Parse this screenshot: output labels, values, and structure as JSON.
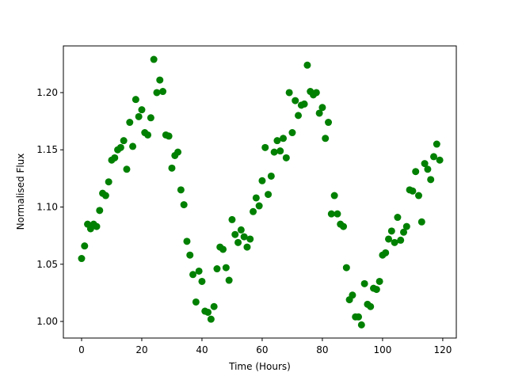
{
  "chart_data": {
    "type": "scatter",
    "xlabel": "Time (Hours)",
    "ylabel": "Normalised Flux",
    "color": "#008000",
    "x": [
      0,
      1,
      2,
      3,
      4,
      5,
      6,
      7,
      8,
      9,
      10,
      11,
      12,
      13,
      14,
      15,
      16,
      17,
      18,
      19,
      20,
      21,
      22,
      23,
      24,
      25,
      26,
      27,
      28,
      29,
      30,
      31,
      32,
      33,
      34,
      35,
      36,
      37,
      38,
      39,
      40,
      41,
      42,
      43,
      44,
      45,
      46,
      47,
      48,
      49,
      50,
      51,
      52,
      53,
      54,
      55,
      56,
      57,
      58,
      59,
      60,
      61,
      62,
      63,
      64,
      65,
      66,
      67,
      68,
      69,
      70,
      71,
      72,
      73,
      74,
      75,
      76,
      77,
      78,
      79,
      80,
      81,
      82,
      83,
      84,
      85,
      86,
      87,
      88,
      89,
      90,
      91,
      92,
      93,
      94,
      95,
      96,
      97,
      98,
      99,
      100,
      101,
      102,
      103,
      104,
      105,
      106,
      107,
      108,
      109,
      110,
      111,
      112,
      113,
      114,
      115,
      116,
      117,
      118,
      119
    ],
    "values": [
      1.055,
      1.066,
      1.085,
      1.081,
      1.085,
      1.083,
      1.097,
      1.112,
      1.11,
      1.122,
      1.141,
      1.143,
      1.15,
      1.152,
      1.158,
      1.133,
      1.174,
      1.153,
      1.194,
      1.179,
      1.185,
      1.165,
      1.163,
      1.178,
      1.229,
      1.2,
      1.211,
      1.201,
      1.163,
      1.162,
      1.134,
      1.145,
      1.148,
      1.115,
      1.102,
      1.07,
      1.058,
      1.041,
      1.017,
      1.044,
      1.035,
      1.009,
      1.008,
      1.002,
      1.013,
      1.046,
      1.065,
      1.063,
      1.047,
      1.036,
      1.089,
      1.076,
      1.069,
      1.08,
      1.074,
      1.065,
      1.072,
      1.096,
      1.108,
      1.101,
      1.123,
      1.152,
      1.111,
      1.127,
      1.148,
      1.158,
      1.149,
      1.16,
      1.143,
      1.2,
      1.165,
      1.193,
      1.18,
      1.189,
      1.19,
      1.224,
      1.201,
      1.198,
      1.2,
      1.182,
      1.187,
      1.16,
      1.174,
      1.094,
      1.11,
      1.094,
      1.085,
      1.083,
      1.047,
      1.019,
      1.023,
      1.004,
      1.004,
      0.997,
      1.033,
      1.015,
      1.013,
      1.029,
      1.028,
      1.035,
      1.058,
      1.06,
      1.072,
      1.079,
      1.069,
      1.091,
      1.071,
      1.078,
      1.083,
      1.115,
      1.114,
      1.131,
      1.11,
      1.087,
      1.138,
      1.133,
      1.124,
      1.144,
      1.155,
      1.141
    ],
    "xlim": [
      -6.05,
      124.5
    ],
    "ylim": [
      0.9855,
      1.2408
    ],
    "xticks": [
      0,
      20,
      40,
      60,
      80,
      100,
      120
    ],
    "yticks": [
      {
        "value": 1,
        "label": "1.00"
      },
      1.05,
      {
        "value": 1.1,
        "label": "1.10"
      },
      1.15,
      {
        "value": 1.2,
        "label": "1.20"
      }
    ]
  }
}
